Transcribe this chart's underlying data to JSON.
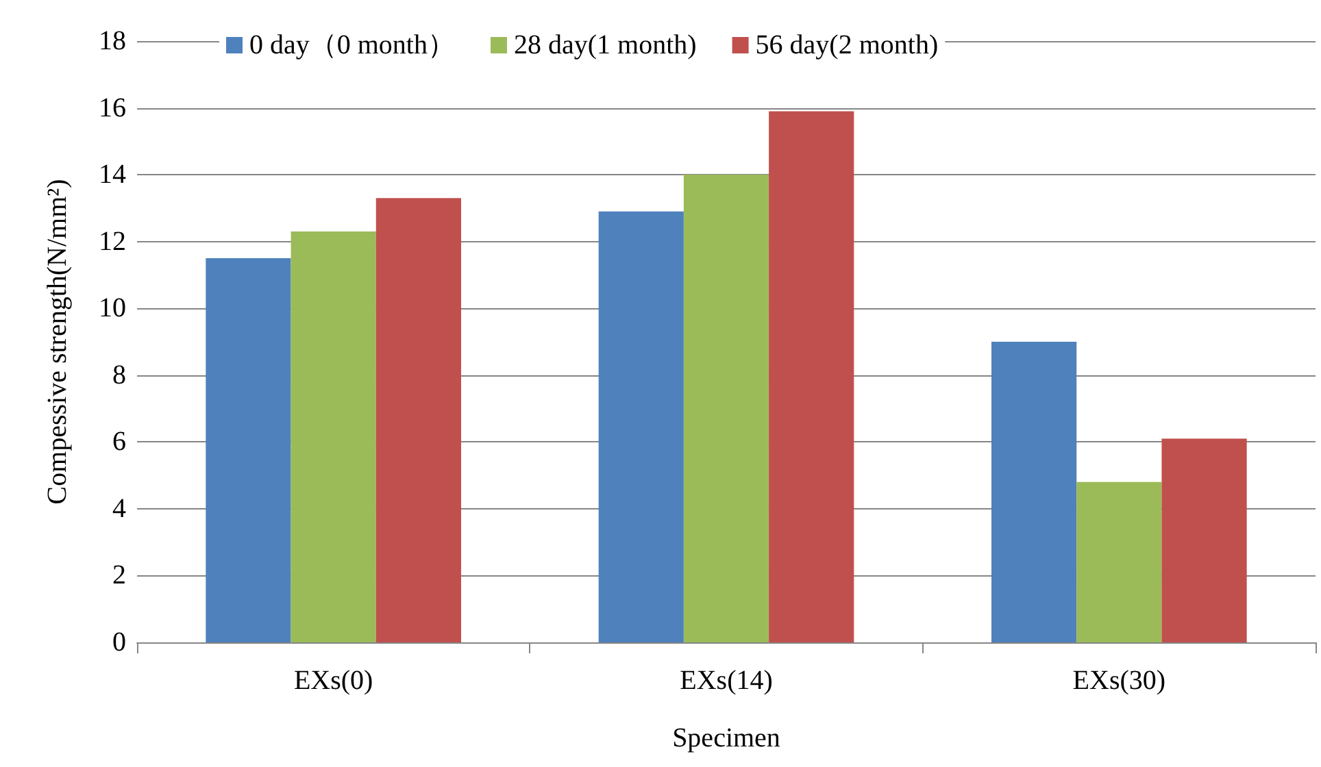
{
  "chart_data": {
    "type": "bar",
    "xlabel": "Specimen",
    "ylabel": "Compessive strength(N/mm²)",
    "categories": [
      "EXs(0)",
      "EXs(14)",
      "EXs(30)"
    ],
    "series": [
      {
        "name": "0 day（0 month）",
        "color": "#4f81bd",
        "values": [
          11.5,
          12.9,
          9.0
        ]
      },
      {
        "name": "28 day(1 month)",
        "color": "#9bbb59",
        "values": [
          12.3,
          14.0,
          4.8
        ]
      },
      {
        "name": "56 day(2 month)",
        "color": "#c0504d",
        "values": [
          13.3,
          15.9,
          6.1
        ]
      }
    ],
    "ylim": [
      0,
      18
    ],
    "yticks": [
      0,
      2,
      4,
      6,
      8,
      10,
      12,
      14,
      16,
      18
    ],
    "grid": "y",
    "legend": "top"
  }
}
